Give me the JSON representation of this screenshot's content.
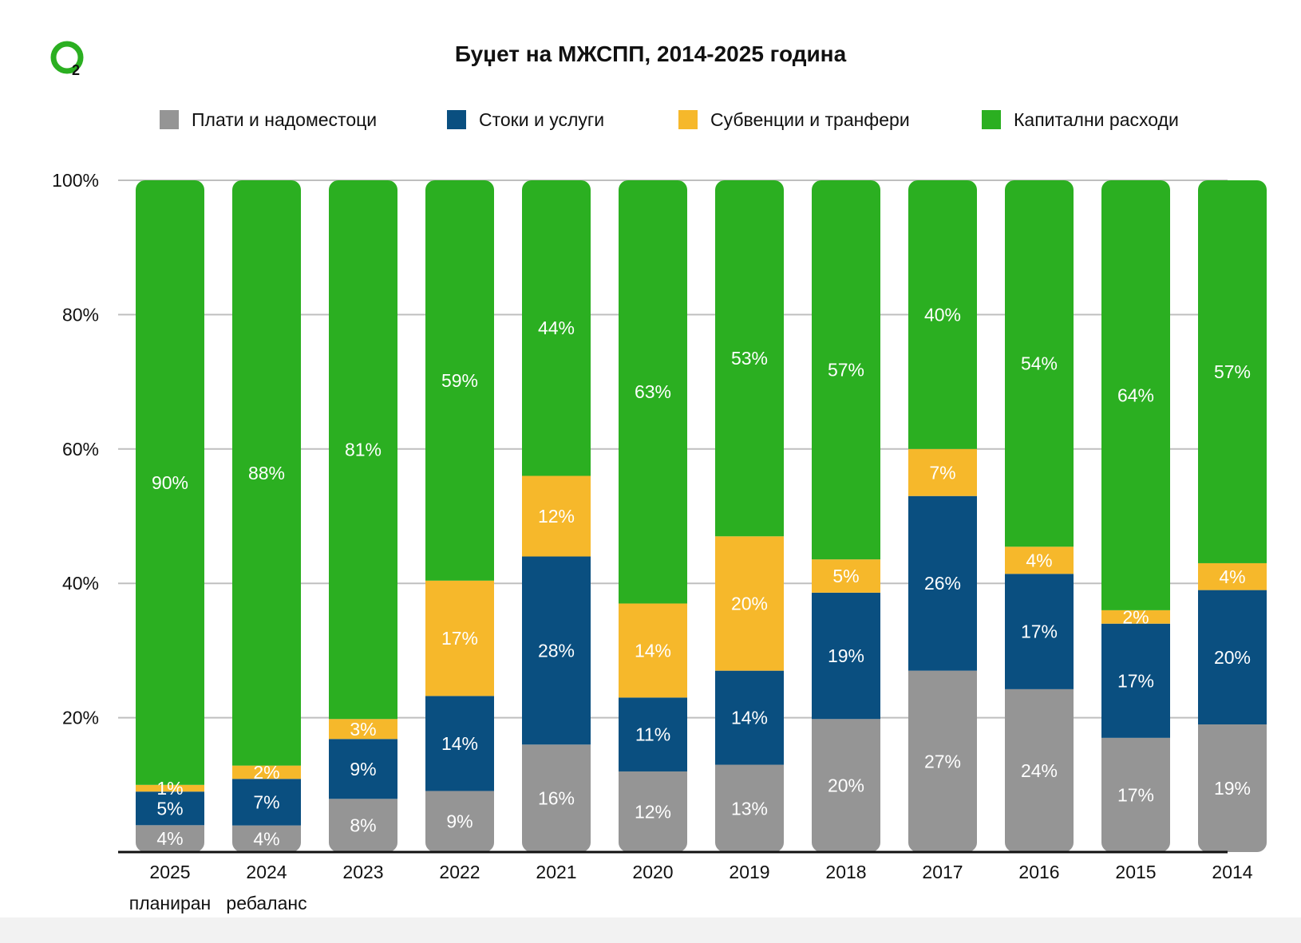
{
  "colors": {
    "plati": "#959595",
    "stoki": "#0a4f80",
    "subvencii": "#f6b82b",
    "kapitalni": "#2baf21",
    "grid": "#bfbfbf",
    "axis": "#111111",
    "logo": "#2baf21"
  },
  "logo": {
    "icon": "o2-logo-icon",
    "subscript": "2"
  },
  "chart_data": {
    "type": "bar",
    "stacked": true,
    "title": "Буџет на МЖСПП, 2014-2025 година",
    "xlabel": "",
    "ylabel": "",
    "ylim": [
      0,
      100
    ],
    "yticks": [
      "20%",
      "40%",
      "60%",
      "80%",
      "100%"
    ],
    "grid": true,
    "legend_position": "top",
    "categories": [
      "2025",
      "2024",
      "2023",
      "2022",
      "2021",
      "2020",
      "2019",
      "2018",
      "2017",
      "2016",
      "2015",
      "2014"
    ],
    "category_sublabels": [
      "планиран",
      "ребаланс",
      "",
      "",
      "",
      "",
      "",
      "",
      "",
      "",
      "",
      ""
    ],
    "series": [
      {
        "name": "Плати и надоместоци",
        "color_key": "plati",
        "values": [
          4,
          4,
          8,
          9,
          16,
          12,
          13,
          20,
          27,
          24,
          17,
          19
        ]
      },
      {
        "name": "Стоки и услуги",
        "color_key": "stoki",
        "values": [
          5,
          7,
          9,
          14,
          28,
          11,
          14,
          19,
          26,
          17,
          17,
          20
        ]
      },
      {
        "name": "Субвенции и транфери",
        "color_key": "subvencii",
        "values": [
          1,
          2,
          3,
          17,
          12,
          14,
          20,
          5,
          7,
          4,
          2,
          4
        ]
      },
      {
        "name": "Капитални расходи",
        "color_key": "kapitalni",
        "values": [
          90,
          88,
          81,
          59,
          44,
          63,
          53,
          57,
          40,
          54,
          64,
          57
        ]
      }
    ],
    "data_labels": [
      [
        "4%",
        "4%",
        "8%",
        "9%",
        "16%",
        "12%",
        "13%",
        "20%",
        "27%",
        "24%",
        "17%",
        "19%"
      ],
      [
        "5%",
        "7%",
        "9%",
        "14%",
        "28%",
        "11%",
        "14%",
        "19%",
        "26%",
        "17%",
        "17%",
        "20%"
      ],
      [
        "1%",
        "2%",
        "3%",
        "17%",
        "12%",
        "14%",
        "20%",
        "5%",
        "7%",
        "4%",
        "2%",
        "4%"
      ],
      [
        "90%",
        "88%",
        "81%",
        "59%",
        "44%",
        "63%",
        "53%",
        "57%",
        "40%",
        "54%",
        "64%",
        "57%"
      ]
    ]
  }
}
